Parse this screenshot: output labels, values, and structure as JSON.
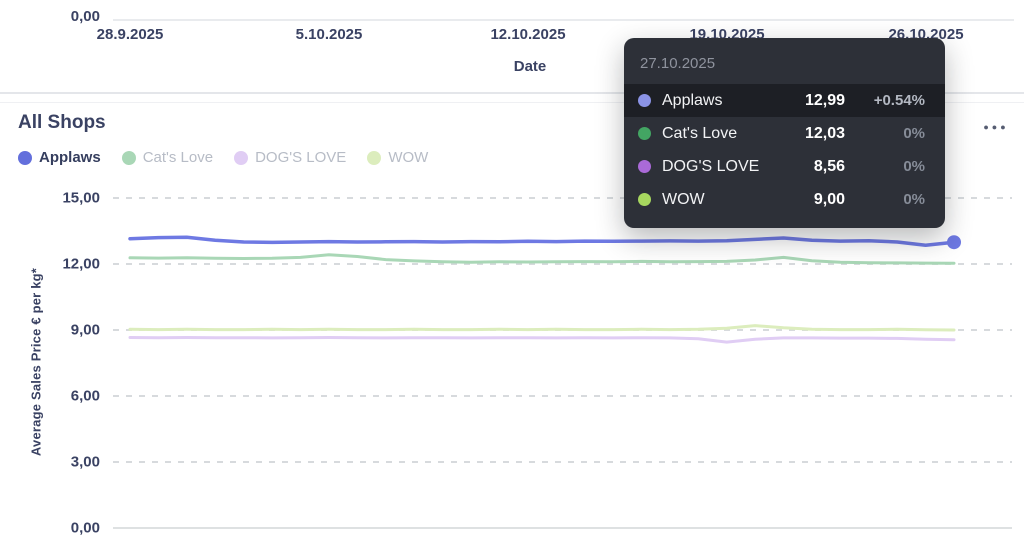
{
  "top_chart": {
    "y_tick_label": "0,00",
    "x_ticks": [
      "28.9.2025",
      "5.10.2025",
      "12.10.2025",
      "19.10.2025",
      "26.10.2025"
    ],
    "x_axis_title": "Date"
  },
  "shops_chart": {
    "title": "All Shops",
    "more_options_icon": "●●●",
    "y_axis_label": "Average Sales Price € per kg*",
    "y_ticks": [
      "15,00",
      "12,00",
      "9,00",
      "6,00",
      "3,00",
      "0,00"
    ],
    "legend": [
      {
        "label": "Applaws",
        "color": "#636fdc",
        "active": true
      },
      {
        "label": "Cat's Love",
        "color": "#a9d7b6",
        "active": false
      },
      {
        "label": "DOG'S LOVE",
        "color": "#e0cdf4",
        "active": false
      },
      {
        "label": "WOW",
        "color": "#dcedbd",
        "active": false
      }
    ]
  },
  "tooltip": {
    "date": "27.10.2025",
    "rows": [
      {
        "name": "Applaws",
        "value": "12,99",
        "change": "+0.54%",
        "color": "#8b93e6",
        "highlighted": true
      },
      {
        "name": "Cat's Love",
        "value": "12,03",
        "change": "0%",
        "color": "#43a563",
        "highlighted": false
      },
      {
        "name": "DOG'S LOVE",
        "value": "8,56",
        "change": "0%",
        "color": "#aa6ad8",
        "highlighted": false
      },
      {
        "name": "WOW",
        "value": "9,00",
        "change": "0%",
        "color": "#a7d75f",
        "highlighted": false
      }
    ]
  },
  "chart_data": {
    "type": "line",
    "title": "All Shops",
    "xlabel": "Date",
    "ylabel": "Average Sales Price € per kg*",
    "ylim": [
      0,
      15
    ],
    "y_tick_values": [
      0,
      3,
      6,
      9,
      12,
      15
    ],
    "grid": "horizontal-dashed",
    "legend_position": "top-left",
    "hovered_x": "27.10.2025",
    "x": [
      "28.9.2025",
      "29.9.2025",
      "30.9.2025",
      "1.10.2025",
      "2.10.2025",
      "3.10.2025",
      "4.10.2025",
      "5.10.2025",
      "6.10.2025",
      "7.10.2025",
      "8.10.2025",
      "9.10.2025",
      "10.10.2025",
      "11.10.2025",
      "12.10.2025",
      "13.10.2025",
      "14.10.2025",
      "15.10.2025",
      "16.10.2025",
      "17.10.2025",
      "18.10.2025",
      "19.10.2025",
      "20.10.2025",
      "21.10.2025",
      "22.10.2025",
      "23.10.2025",
      "24.10.2025",
      "25.10.2025",
      "26.10.2025",
      "27.10.2025"
    ],
    "series": [
      {
        "name": "Applaws",
        "color": "#6e79e3",
        "values": [
          13.15,
          13.2,
          13.22,
          13.08,
          13.0,
          12.98,
          13.0,
          13.02,
          13.0,
          13.01,
          13.02,
          13.0,
          13.02,
          13.01,
          13.03,
          13.02,
          13.04,
          13.03,
          13.04,
          13.05,
          13.04,
          13.06,
          13.12,
          13.18,
          13.08,
          13.04,
          13.06,
          13.0,
          12.85,
          12.99
        ]
      },
      {
        "name": "Cat's Love",
        "color": "#a9d7b6",
        "values": [
          12.28,
          12.27,
          12.28,
          12.26,
          12.25,
          12.26,
          12.3,
          12.42,
          12.34,
          12.2,
          12.14,
          12.1,
          12.08,
          12.1,
          12.09,
          12.1,
          12.11,
          12.1,
          12.12,
          12.1,
          12.11,
          12.12,
          12.18,
          12.3,
          12.15,
          12.08,
          12.06,
          12.05,
          12.04,
          12.03
        ]
      },
      {
        "name": "DOG'S LOVE",
        "color": "#e0cdf4",
        "values": [
          8.66,
          8.65,
          8.66,
          8.65,
          8.65,
          8.64,
          8.65,
          8.66,
          8.65,
          8.64,
          8.65,
          8.65,
          8.64,
          8.65,
          8.65,
          8.64,
          8.65,
          8.64,
          8.65,
          8.64,
          8.6,
          8.45,
          8.58,
          8.64,
          8.64,
          8.63,
          8.63,
          8.62,
          8.58,
          8.56
        ]
      },
      {
        "name": "WOW",
        "color": "#dcedbd",
        "values": [
          9.03,
          9.02,
          9.03,
          9.02,
          9.02,
          9.03,
          9.02,
          9.03,
          9.02,
          9.02,
          9.03,
          9.02,
          9.02,
          9.03,
          9.02,
          9.03,
          9.02,
          9.02,
          9.03,
          9.02,
          9.03,
          9.08,
          9.2,
          9.1,
          9.03,
          9.02,
          9.02,
          9.03,
          9.01,
          9.0
        ]
      }
    ]
  }
}
